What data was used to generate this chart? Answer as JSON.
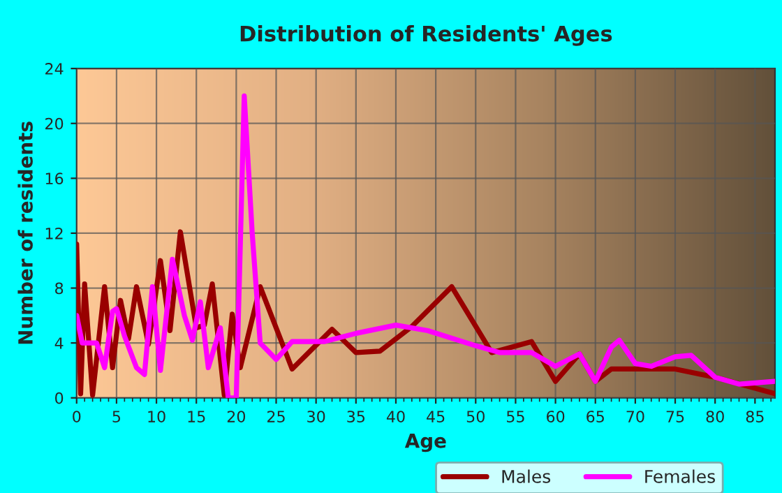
{
  "chart_data": {
    "type": "line",
    "title": "Distribution of Residents' Ages",
    "xlabel": "Age",
    "ylabel": "Number of residents",
    "xlim": [
      0,
      87.5
    ],
    "xticks": [
      0,
      5,
      10,
      15,
      20,
      25,
      30,
      35,
      40,
      45,
      50,
      55,
      60,
      65,
      70,
      75,
      80,
      85
    ],
    "ylim": [
      0,
      24
    ],
    "yticks": [
      0,
      4,
      8,
      12,
      16,
      20,
      24
    ],
    "grid": true,
    "legend": "bottom",
    "marker": "none",
    "line_style": "solid",
    "series": [
      {
        "name": "Males",
        "color": "#990000",
        "x": [
          0,
          0.5,
          1,
          2,
          3.5,
          4.5,
          5.5,
          6.5,
          7.5,
          9,
          10.5,
          11.7,
          13,
          15,
          16,
          17,
          18.5,
          19.5,
          20.5,
          23,
          27,
          32,
          35,
          38,
          42,
          47,
          52,
          57,
          60,
          63,
          65,
          67,
          75,
          80,
          87.5
        ],
        "values": [
          11.2,
          0.3,
          8.3,
          0.2,
          8.1,
          2.2,
          7.1,
          4.3,
          8.1,
          3.9,
          10,
          4.9,
          12.1,
          5.1,
          5.3,
          8.3,
          0.2,
          6.1,
          2.2,
          8.1,
          2.1,
          5,
          3.3,
          3.4,
          5.2,
          8.1,
          3.3,
          4.1,
          1.2,
          3.2,
          1.2,
          2.1,
          2.1,
          1.5,
          0.3
        ]
      },
      {
        "name": "Females",
        "color": "#ff00ff",
        "x": [
          0,
          0.7,
          1.5,
          2.5,
          3.5,
          4.5,
          5,
          6,
          7.5,
          8.5,
          9.5,
          10.5,
          12,
          13.5,
          14.5,
          15.5,
          16.5,
          18,
          19,
          20,
          21,
          22,
          23,
          25,
          27,
          31,
          35,
          40,
          44,
          50,
          53,
          57,
          60,
          63,
          65,
          67,
          68,
          70,
          72,
          75,
          77,
          80,
          83,
          87.5
        ],
        "values": [
          6,
          4,
          4,
          4,
          2.2,
          6.3,
          6.5,
          4.5,
          2.2,
          1.7,
          8.1,
          2,
          10.1,
          6,
          4.2,
          7,
          2.2,
          5.1,
          0,
          0,
          22,
          12,
          4,
          2.8,
          4.1,
          4.1,
          4.7,
          5.3,
          4.9,
          3.8,
          3.3,
          3.3,
          2.3,
          3.2,
          1.2,
          3.7,
          4.2,
          2.5,
          2.3,
          3,
          3.1,
          1.5,
          1,
          1.2
        ]
      }
    ]
  }
}
